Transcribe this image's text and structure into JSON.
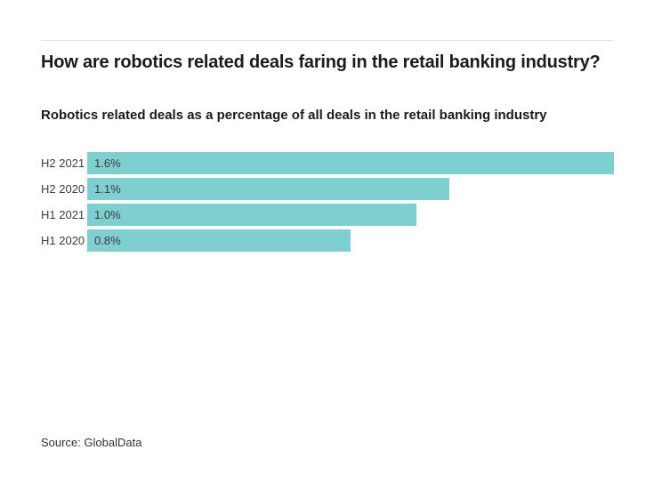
{
  "header": {
    "title": "How are robotics related deals faring in the retail banking industry?",
    "subtitle": "Robotics related deals as a percentage of all deals in the retail banking industry"
  },
  "footer": {
    "source": "Source: GlobalData"
  },
  "colors": {
    "bar": "#7ecfd0",
    "divider": "#e4e4e4",
    "text": "#1b1b1b",
    "label_text": "#3c3c3c"
  },
  "chart_data": {
    "type": "bar",
    "orientation": "horizontal",
    "title": "How are robotics related deals faring in the retail banking industry?",
    "subtitle": "Robotics related deals as a percentage of all deals in the retail banking industry",
    "categories": [
      "H2 2021",
      "H2 2020",
      "H1 2021",
      "H1 2020"
    ],
    "values": [
      1.6,
      1.1,
      1.0,
      0.8
    ],
    "value_labels": [
      "1.6%",
      "1.1%",
      "1.0%",
      "0.8%"
    ],
    "xlabel": "",
    "ylabel": "",
    "xlim": [
      0,
      1.6
    ],
    "grid": false,
    "legend": false,
    "bar_color": "#7ecfd0",
    "source": "Source: GlobalData"
  }
}
